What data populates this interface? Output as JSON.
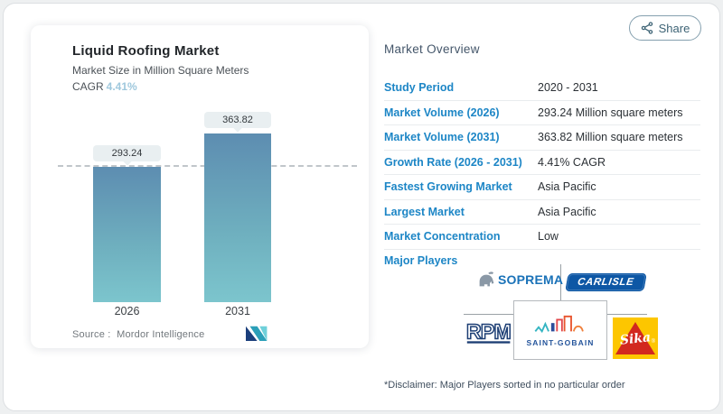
{
  "share": {
    "label": "Share",
    "icon": "share-nodes-icon"
  },
  "chart_card": {
    "title": "Liquid Roofing Market",
    "subtitle": "Market Size in Million Square Meters",
    "cagr_label": "CAGR",
    "cagr_value": "4.41%",
    "source_label": "Source :",
    "source_value": "Mordor Intelligence",
    "brand_logo": "mordor-intelligence-logo"
  },
  "chart_data": {
    "type": "bar",
    "title": "Liquid Roofing Market",
    "subtitle": "Market Size in Million Square Meters",
    "categories": [
      "2026",
      "2031"
    ],
    "values": [
      293.24,
      363.82
    ],
    "value_labels": [
      "293.24",
      "363.82"
    ],
    "ylabel": "Million Square Meters",
    "cagr": "4.41%",
    "reference_line_at": 293.24,
    "grid": false,
    "legend": false,
    "bar_gradient": [
      "#5d8db1",
      "#7cc5cd"
    ]
  },
  "overview": {
    "heading": "Market Overview",
    "rows": [
      {
        "label": "Study Period",
        "value": "2020 - 2031"
      },
      {
        "label": "Market Volume (2026)",
        "value": "293.24 Million square meters"
      },
      {
        "label": "Market Volume (2031)",
        "value": "363.82 Million square meters"
      },
      {
        "label": "Growth Rate (2026 - 2031)",
        "value": "4.41% CAGR"
      },
      {
        "label": "Fastest Growing Market",
        "value": "Asia Pacific"
      },
      {
        "label": "Largest Market",
        "value": "Asia Pacific"
      },
      {
        "label": "Market Concentration",
        "value": "Low"
      }
    ],
    "major_players_label": "Major Players",
    "major_players": [
      "SOPREMA",
      "CARLISLE",
      "RPM",
      "SAINT-GOBAIN",
      "Sika"
    ],
    "disclaimer": "*Disclaimer: Major Players sorted in no particular order"
  },
  "logos": {
    "soprema_text": "SOPREMA",
    "carlisle_text": "CARLISLE",
    "saint_gobain_text": "SAINT-GOBAIN",
    "sika_text": "Sika"
  },
  "colors": {
    "label_blue": "#1d86c6",
    "cagr_light_blue": "#9fc8dd",
    "bar_top": "#5d8db1",
    "bar_bottom": "#7cc5cd",
    "share_teal": "#3c6274"
  }
}
